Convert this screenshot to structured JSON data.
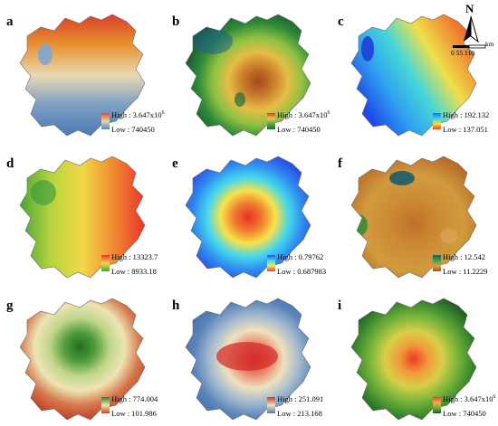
{
  "panels": [
    {
      "label": "a",
      "high": "3.647x10",
      "high_exp": "6",
      "low": "740450",
      "bar": [
        "#e6482f",
        "#e0d9b0",
        "#5a86b8"
      ],
      "pattern": "red-north-blue-south"
    },
    {
      "label": "b",
      "high": "3.647x10",
      "high_exp": "6",
      "low": "740450",
      "bar": [
        "#d9392b",
        "#f2c14b",
        "#55a845",
        "#1f6b2a"
      ],
      "pattern": "brown-center-green-edge"
    },
    {
      "label": "c",
      "high": "192.132",
      "high_exp": "",
      "low": "137.051",
      "bar": [
        "#1e6ff0",
        "#3fd0ef",
        "#f4e33b",
        "#f03a26"
      ],
      "pattern": "blue-west-red-northeast"
    },
    {
      "label": "d",
      "high": "13323.7",
      "high_exp": "",
      "low": "8933.18",
      "bar": [
        "#e8312a",
        "#f6d74a",
        "#3ba63a"
      ],
      "pattern": "red-east-green-west"
    },
    {
      "label": "e",
      "high": "0.79762",
      "high_exp": "",
      "low": "0.687983",
      "bar": [
        "#2a50e6",
        "#43d7ef",
        "#f6e84a",
        "#ef3b2a"
      ],
      "pattern": "red-center-blue-edge"
    },
    {
      "label": "f",
      "high": "12.542",
      "high_exp": "",
      "low": "11.2229",
      "bar": [
        "#1a5d6c",
        "#3aa449",
        "#d8a044",
        "#b54a20"
      ],
      "pattern": "brown-field-green-spots"
    },
    {
      "label": "g",
      "high": "774.004",
      "high_exp": "",
      "low": "101.986",
      "bar": [
        "#2d7d2c",
        "#efe7b1",
        "#c9432b"
      ],
      "pattern": "green-center-red-edge"
    },
    {
      "label": "h",
      "high": "251.091",
      "high_exp": "",
      "low": "213.168",
      "bar": [
        "#d9322a",
        "#ece3b7",
        "#4d7db5"
      ],
      "pattern": "red-center-blue-edge-soft"
    },
    {
      "label": "i",
      "high": "3.647x10",
      "high_exp": "6",
      "low": "740450",
      "bar": [
        "#ef3b2a",
        "#f5b245",
        "#6fb23c",
        "#1d5a24"
      ],
      "pattern": "orange-center-green-edge"
    }
  ],
  "legend_prefix": {
    "high": "High : ",
    "low": "Low : "
  },
  "north_arrow": {
    "letter": "N",
    "unit": "km",
    "ticks": "0    55   110"
  },
  "colors": {
    "a": {
      "n": "#d8412b",
      "s": "#5b84b6",
      "m": "#e9dfb7"
    },
    "b": {
      "c": "#b5541f",
      "m": "#e7b944",
      "g": "#4ca542",
      "d": "#1e5f2c"
    }
  }
}
